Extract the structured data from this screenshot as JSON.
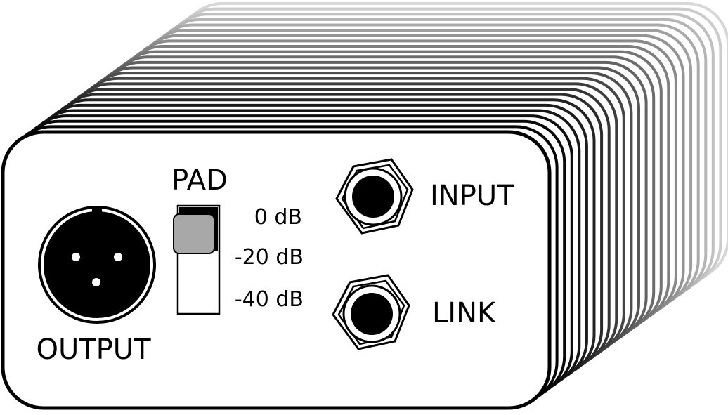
{
  "device": {
    "pad_label": "PAD",
    "pad_options": [
      "0 dB",
      "-20 dB",
      "-40 dB"
    ],
    "pad_selected": "0 dB",
    "input_label": "INPUT",
    "link_label": "LINK",
    "output_label": "OUTPUT",
    "slider_knob_color": "#a8a8a8",
    "outline_color": "#000000"
  }
}
